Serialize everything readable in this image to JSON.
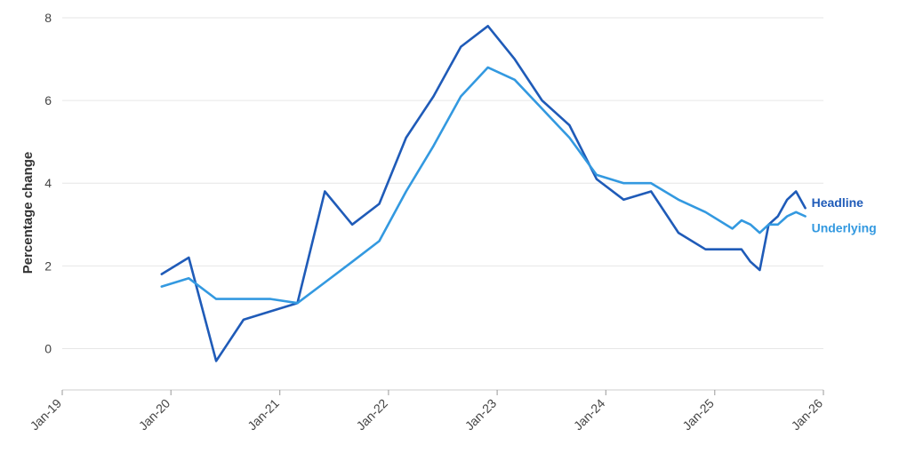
{
  "chart_data": {
    "type": "line",
    "ylabel": "Percentage change",
    "ylim": [
      -1,
      8
    ],
    "yticks": [
      0,
      2,
      4,
      6,
      8
    ],
    "xlim": [
      "2019-01-01",
      "2026-01-01"
    ],
    "xticks": [
      {
        "date": "2019-01-01",
        "label": "Jan-19"
      },
      {
        "date": "2020-01-01",
        "label": "Jan-20"
      },
      {
        "date": "2021-01-01",
        "label": "Jan-21"
      },
      {
        "date": "2022-01-01",
        "label": "Jan-22"
      },
      {
        "date": "2023-01-01",
        "label": "Jan-23"
      },
      {
        "date": "2024-01-01",
        "label": "Jan-24"
      },
      {
        "date": "2025-01-01",
        "label": "Jan-25"
      },
      {
        "date": "2026-01-01",
        "label": "Jan-26"
      }
    ],
    "grid": true,
    "legend": "inline-right",
    "series": [
      {
        "name": "Headline",
        "color": "#1f5bb8",
        "points": [
          {
            "x": "2019-12-01",
            "y": 1.8
          },
          {
            "x": "2020-03-01",
            "y": 2.2
          },
          {
            "x": "2020-06-01",
            "y": -0.3
          },
          {
            "x": "2020-09-01",
            "y": 0.7
          },
          {
            "x": "2020-12-01",
            "y": 0.9
          },
          {
            "x": "2021-03-01",
            "y": 1.1
          },
          {
            "x": "2021-06-01",
            "y": 3.8
          },
          {
            "x": "2021-09-01",
            "y": 3.0
          },
          {
            "x": "2021-12-01",
            "y": 3.5
          },
          {
            "x": "2022-03-01",
            "y": 5.1
          },
          {
            "x": "2022-06-01",
            "y": 6.1
          },
          {
            "x": "2022-09-01",
            "y": 7.3
          },
          {
            "x": "2022-12-01",
            "y": 7.8
          },
          {
            "x": "2023-03-01",
            "y": 7.0
          },
          {
            "x": "2023-06-01",
            "y": 6.0
          },
          {
            "x": "2023-09-01",
            "y": 5.4
          },
          {
            "x": "2023-12-01",
            "y": 4.1
          },
          {
            "x": "2024-03-01",
            "y": 3.6
          },
          {
            "x": "2024-06-01",
            "y": 3.8
          },
          {
            "x": "2024-09-01",
            "y": 2.8
          },
          {
            "x": "2024-12-01",
            "y": 2.4
          },
          {
            "x": "2025-03-01",
            "y": 2.4
          },
          {
            "x": "2025-04-01",
            "y": 2.4
          },
          {
            "x": "2025-05-01",
            "y": 2.1
          },
          {
            "x": "2025-06-01",
            "y": 1.9
          },
          {
            "x": "2025-07-01",
            "y": 3.0
          },
          {
            "x": "2025-08-01",
            "y": 3.2
          },
          {
            "x": "2025-09-01",
            "y": 3.6
          },
          {
            "x": "2025-10-01",
            "y": 3.8
          },
          {
            "x": "2025-11-01",
            "y": 3.4
          }
        ]
      },
      {
        "name": "Underlying",
        "color": "#3399e0",
        "points": [
          {
            "x": "2019-12-01",
            "y": 1.5
          },
          {
            "x": "2020-03-01",
            "y": 1.7
          },
          {
            "x": "2020-06-01",
            "y": 1.2
          },
          {
            "x": "2020-09-01",
            "y": 1.2
          },
          {
            "x": "2020-12-01",
            "y": 1.2
          },
          {
            "x": "2021-03-01",
            "y": 1.1
          },
          {
            "x": "2021-06-01",
            "y": 1.6
          },
          {
            "x": "2021-09-01",
            "y": 2.1
          },
          {
            "x": "2021-12-01",
            "y": 2.6
          },
          {
            "x": "2022-03-01",
            "y": 3.8
          },
          {
            "x": "2022-06-01",
            "y": 4.9
          },
          {
            "x": "2022-09-01",
            "y": 6.1
          },
          {
            "x": "2022-12-01",
            "y": 6.8
          },
          {
            "x": "2023-03-01",
            "y": 6.5
          },
          {
            "x": "2023-06-01",
            "y": 5.8
          },
          {
            "x": "2023-09-01",
            "y": 5.1
          },
          {
            "x": "2023-12-01",
            "y": 4.2
          },
          {
            "x": "2024-03-01",
            "y": 4.0
          },
          {
            "x": "2024-06-01",
            "y": 4.0
          },
          {
            "x": "2024-09-01",
            "y": 3.6
          },
          {
            "x": "2024-12-01",
            "y": 3.3
          },
          {
            "x": "2025-03-01",
            "y": 2.9
          },
          {
            "x": "2025-04-01",
            "y": 3.1
          },
          {
            "x": "2025-05-01",
            "y": 3.0
          },
          {
            "x": "2025-06-01",
            "y": 2.8
          },
          {
            "x": "2025-07-01",
            "y": 3.0
          },
          {
            "x": "2025-08-01",
            "y": 3.0
          },
          {
            "x": "2025-09-01",
            "y": 3.2
          },
          {
            "x": "2025-10-01",
            "y": 3.3
          },
          {
            "x": "2025-11-01",
            "y": 3.2
          }
        ]
      }
    ]
  }
}
